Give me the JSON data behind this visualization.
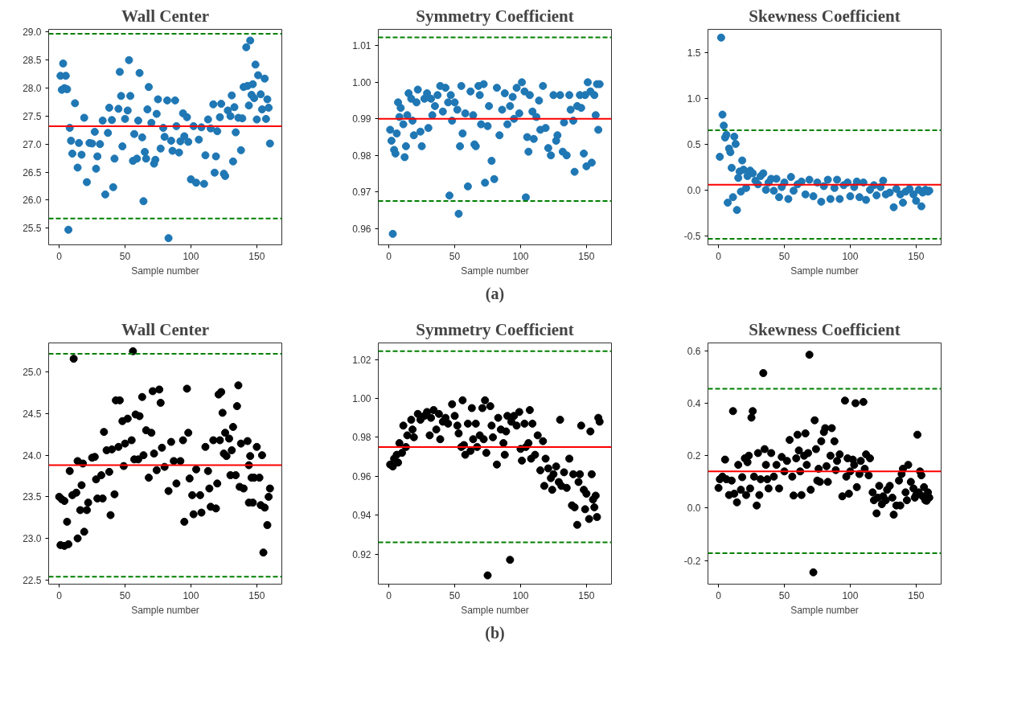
{
  "chart_data": [
    {
      "type": "scatter",
      "title": "Wall Center",
      "xlabel": "Sample number",
      "marker": "circle",
      "grid": false,
      "xlim": [
        -8,
        169
      ],
      "ylim": [
        25.2,
        29.05
      ],
      "xticks": [
        0,
        50,
        100,
        150
      ],
      "yticks": [
        25.5,
        {
          "value": 26,
          "label": "26.0"
        },
        26.5,
        {
          "value": 27,
          "label": "27.0"
        },
        27.5,
        {
          "value": 28,
          "label": "28.0"
        },
        28.5,
        {
          "value": 29,
          "label": "29.0"
        }
      ],
      "x": [
        1,
        2,
        3,
        4,
        5,
        6,
        7,
        8,
        9,
        10,
        12,
        14,
        15,
        17,
        19,
        21,
        23,
        25,
        27,
        28,
        29,
        31,
        33,
        35,
        37,
        38,
        40,
        41,
        42,
        45,
        46,
        47,
        48,
        50,
        52,
        53,
        54,
        56,
        57,
        59,
        60,
        61,
        63,
        64,
        65,
        66,
        67,
        68,
        70,
        72,
        73,
        74,
        75,
        77,
        79,
        80,
        82,
        83,
        85,
        86,
        88,
        89,
        91,
        92,
        94,
        95,
        97,
        98,
        100,
        102,
        104,
        106,
        108,
        110,
        111,
        113,
        115,
        117,
        118,
        119,
        120,
        122,
        123,
        125,
        126,
        128,
        130,
        131,
        132,
        133,
        134,
        136,
        138,
        139,
        140,
        142,
        143,
        144,
        145,
        146,
        147,
        148,
        149,
        150,
        151,
        153,
        154,
        156,
        157,
        158,
        159,
        160
      ],
      "series": [
        {
          "color": "#1f77b4",
          "values": [
            28.22,
            27.97,
            28.44,
            28.0,
            28.22,
            27.98,
            25.47,
            27.29,
            27.06,
            26.83,
            27.73,
            26.58,
            27.02,
            26.81,
            27.47,
            26.32,
            27.02,
            27.01,
            27.22,
            26.56,
            26.78,
            27.0,
            27.42,
            26.1,
            27.2,
            27.65,
            27.43,
            26.23,
            26.74,
            27.63,
            28.29,
            27.86,
            26.96,
            27.45,
            27.6,
            28.5,
            27.86,
            26.7,
            27.18,
            26.74,
            27.42,
            28.27,
            27.12,
            25.98,
            26.86,
            26.74,
            27.62,
            28.02,
            27.38,
            26.65,
            26.72,
            27.54,
            27.8,
            26.92,
            27.29,
            27.13,
            27.78,
            25.32,
            27.06,
            26.88,
            27.78,
            27.32,
            26.85,
            27.05,
            27.55,
            27.14,
            27.48,
            27.04,
            26.37,
            27.32,
            26.31,
            27.08,
            27.3,
            26.29,
            26.8,
            27.44,
            27.28,
            27.71,
            26.49,
            26.78,
            27.23,
            27.48,
            27.72,
            26.47,
            26.43,
            27.6,
            27.5,
            27.87,
            26.69,
            27.66,
            27.21,
            27.47,
            26.89,
            27.46,
            28.02,
            28.73,
            28.04,
            27.69,
            28.85,
            27.88,
            28.07,
            27.82,
            28.42,
            27.44,
            28.23,
            27.89,
            27.62,
            28.17,
            27.45,
            27.8,
            27.65,
            27.01
          ]
        }
      ],
      "ref_lines": [
        {
          "axis": "y",
          "value": 27.32,
          "color": "#ff0000",
          "line_style": "solid"
        },
        {
          "axis": "y",
          "value": 28.97,
          "color": "#008000",
          "line_style": "dashed"
        },
        {
          "axis": "y",
          "value": 25.67,
          "color": "#008000",
          "line_style": "dashed"
        }
      ]
    },
    {
      "type": "scatter",
      "title": "Symmetry Coefficient",
      "xlabel": "Sample number",
      "marker": "circle",
      "grid": false,
      "xlim": [
        -8,
        169
      ],
      "ylim": [
        0.9555,
        1.0145
      ],
      "xticks": [
        0,
        50,
        100,
        150
      ],
      "yticks": [
        0.96,
        0.97,
        0.98,
        0.99,
        {
          "value": 1,
          "label": "1.00"
        },
        1.01
      ],
      "annotations": [
        "(a)"
      ],
      "x": [
        1,
        2,
        3,
        4,
        5,
        6,
        7,
        8,
        9,
        11,
        12,
        13,
        14,
        15,
        17,
        18,
        19,
        21,
        22,
        24,
        25,
        27,
        29,
        30,
        32,
        33,
        35,
        37,
        39,
        41,
        43,
        45,
        46,
        47,
        48,
        50,
        52,
        53,
        54,
        55,
        56,
        58,
        60,
        62,
        64,
        65,
        66,
        68,
        69,
        70,
        72,
        73,
        75,
        76,
        78,
        80,
        82,
        84,
        86,
        88,
        90,
        92,
        94,
        95,
        97,
        99,
        101,
        103,
        104,
        105,
        106,
        107,
        109,
        110,
        112,
        114,
        115,
        117,
        119,
        121,
        123,
        125,
        127,
        128,
        130,
        132,
        133,
        135,
        137,
        138,
        140,
        141,
        143,
        145,
        146,
        148,
        149,
        150,
        151,
        153,
        154,
        156,
        157,
        158,
        159,
        160
      ],
      "series": [
        {
          "color": "#1f77b4",
          "values": [
            0.987,
            0.984,
            0.9585,
            0.9815,
            0.9805,
            0.986,
            0.9945,
            0.9905,
            0.993,
            0.9885,
            0.9795,
            0.9825,
            0.991,
            0.997,
            0.9955,
            0.9895,
            0.9855,
            0.9945,
            0.998,
            0.9865,
            0.9825,
            0.9955,
            0.997,
            0.9875,
            0.9955,
            0.991,
            0.9935,
            0.9965,
            0.999,
            0.992,
            0.9985,
            0.9945,
            0.969,
            0.9965,
            0.9895,
            0.9945,
            0.9925,
            0.964,
            0.9825,
            0.999,
            0.986,
            0.9915,
            0.9715,
            0.9975,
            0.991,
            0.983,
            0.9825,
            0.999,
            0.9965,
            0.9885,
            0.9995,
            0.9725,
            0.988,
            0.9935,
            0.9785,
            0.9735,
            0.9985,
            0.9855,
            0.9925,
            0.997,
            0.9885,
            0.9935,
            0.996,
            0.99,
            0.9985,
            0.9915,
            1.0,
            0.9975,
            0.9685,
            0.985,
            0.981,
            0.9965,
            0.992,
            0.9845,
            0.9905,
            0.995,
            0.987,
            0.999,
            0.9875,
            0.982,
            0.98,
            0.9965,
            0.984,
            0.9855,
            0.9965,
            0.981,
            0.989,
            0.98,
            0.9965,
            0.9925,
            0.9895,
            0.9755,
            0.9935,
            0.9965,
            0.993,
            0.9805,
            0.9965,
            0.977,
            1.0,
            0.9975,
            0.978,
            0.9965,
            0.991,
            0.9995,
            0.987,
            0.9995
          ]
        }
      ],
      "ref_lines": [
        {
          "axis": "y",
          "value": 0.99,
          "color": "#ff0000",
          "line_style": "solid"
        },
        {
          "axis": "y",
          "value": 1.0123,
          "color": "#008000",
          "line_style": "dashed"
        },
        {
          "axis": "y",
          "value": 0.9675,
          "color": "#008000",
          "line_style": "dashed"
        }
      ]
    },
    {
      "type": "scatter",
      "title": "Skewness Coefficient",
      "xlabel": "Sample number",
      "marker": "circle",
      "grid": false,
      "xlim": [
        -8,
        169
      ],
      "ylim": [
        -0.6,
        1.75
      ],
      "xticks": [
        0,
        50,
        100,
        150
      ],
      "yticks": [
        -0.5,
        {
          "value": 0,
          "label": "0.0"
        },
        0.5,
        {
          "value": 1,
          "label": "1.0"
        },
        1.5
      ],
      "x": [
        1,
        2,
        3,
        4,
        5,
        6,
        7,
        8,
        9,
        10,
        11,
        12,
        13,
        14,
        15,
        16,
        17,
        18,
        19,
        21,
        22,
        24,
        26,
        28,
        30,
        32,
        34,
        36,
        38,
        40,
        42,
        44,
        46,
        48,
        50,
        53,
        55,
        57,
        60,
        63,
        66,
        69,
        72,
        75,
        78,
        80,
        83,
        85,
        88,
        90,
        92,
        95,
        98,
        100,
        103,
        105,
        107,
        110,
        112,
        115,
        118,
        120,
        123,
        125,
        127,
        130,
        133,
        135,
        138,
        140,
        142,
        145,
        148,
        150,
        152,
        154,
        155,
        157,
        159,
        160
      ],
      "series": [
        {
          "color": "#1f77b4",
          "values": [
            0.36,
            1.66,
            0.82,
            0.7,
            0.57,
            0.6,
            -0.14,
            0.45,
            0.41,
            0.24,
            -0.08,
            0.58,
            0.5,
            -0.22,
            0.13,
            0.2,
            -0.02,
            0.32,
            0.22,
            0.02,
            0.15,
            0.21,
            0.18,
            0.1,
            0.06,
            0.15,
            0.18,
            0.0,
            0.08,
            0.12,
            -0.01,
            0.12,
            -0.08,
            0.03,
            0.08,
            -0.1,
            0.14,
            -0.01,
            0.06,
            0.09,
            -0.05,
            0.11,
            -0.07,
            0.08,
            -0.13,
            0.04,
            0.11,
            -0.1,
            0.02,
            0.11,
            -0.1,
            0.05,
            0.08,
            -0.07,
            0.03,
            0.09,
            -0.08,
            0.08,
            -0.11,
            0.0,
            0.05,
            -0.06,
            0.03,
            0.1,
            -0.05,
            -0.03,
            -0.19,
            0.01,
            -0.05,
            -0.14,
            -0.02,
            0.01,
            -0.05,
            -0.12,
            0.0,
            -0.18,
            -0.03,
            0.0,
            -0.02,
            -0.01
          ]
        }
      ],
      "ref_lines": [
        {
          "axis": "y",
          "value": 0.055,
          "color": "#ff0000",
          "line_style": "solid"
        },
        {
          "axis": "y",
          "value": 0.65,
          "color": "#008000",
          "line_style": "dashed"
        },
        {
          "axis": "y",
          "value": -0.535,
          "color": "#008000",
          "line_style": "dashed"
        }
      ]
    },
    {
      "type": "scatter",
      "title": "Wall Center",
      "xlabel": "Sample number",
      "marker": "circle",
      "grid": false,
      "xlim": [
        -8,
        169
      ],
      "ylim": [
        22.45,
        25.35
      ],
      "xticks": [
        0,
        50,
        100,
        150
      ],
      "yticks": [
        22.5,
        {
          "value": 23,
          "label": "23.0"
        },
        23.5,
        {
          "value": 24,
          "label": "24.0"
        },
        24.5,
        {
          "value": 25,
          "label": "25.0"
        }
      ],
      "x": [
        0,
        1,
        2,
        4,
        4,
        6,
        7,
        8,
        10,
        11,
        13,
        14,
        14,
        16,
        17,
        18,
        19,
        21,
        22,
        25,
        27,
        28,
        29,
        32,
        33,
        34,
        36,
        38,
        39,
        40,
        42,
        43,
        45,
        46,
        48,
        49,
        50,
        52,
        55,
        56,
        57,
        58,
        60,
        61,
        63,
        64,
        66,
        68,
        70,
        71,
        72,
        74,
        76,
        77,
        78,
        80,
        83,
        85,
        87,
        89,
        92,
        94,
        95,
        97,
        98,
        99,
        101,
        102,
        104,
        107,
        108,
        111,
        113,
        114,
        115,
        117,
        119,
        120,
        121,
        122,
        123,
        124,
        125,
        126,
        127,
        129,
        130,
        131,
        132,
        134,
        135,
        136,
        137,
        138,
        140,
        143,
        144,
        145,
        146,
        144,
        147,
        148,
        150,
        152,
        153,
        154,
        155,
        156,
        158,
        159,
        160
      ],
      "series": [
        {
          "color": "#000000",
          "values": [
            23.5,
            22.92,
            23.47,
            23.45,
            22.91,
            23.2,
            22.93,
            23.81,
            23.52,
            25.16,
            23.55,
            23.0,
            23.93,
            23.34,
            23.64,
            23.9,
            23.08,
            23.34,
            23.43,
            23.97,
            23.98,
            23.71,
            23.48,
            23.76,
            23.48,
            24.28,
            24.06,
            23.8,
            23.28,
            24.07,
            23.53,
            24.66,
            24.1,
            24.66,
            24.41,
            23.87,
            24.14,
            24.44,
            24.18,
            25.25,
            23.95,
            24.49,
            23.95,
            24.47,
            24.7,
            24.0,
            24.3,
            23.73,
            24.27,
            24.77,
            24.02,
            23.82,
            24.79,
            24.63,
            24.09,
            23.86,
            23.57,
            24.16,
            23.93,
            23.66,
            23.93,
            24.18,
            23.2,
            24.8,
            24.27,
            23.72,
            23.52,
            23.29,
            23.83,
            23.52,
            23.31,
            24.1,
            23.81,
            23.6,
            23.38,
            24.18,
            23.36,
            23.66,
            24.73,
            24.18,
            24.76,
            24.51,
            24.02,
            24.27,
            23.99,
            24.2,
            23.76,
            24.06,
            24.34,
            23.76,
            24.59,
            24.84,
            23.62,
            24.14,
            23.6,
            24.17,
            23.88,
            23.99,
            23.73,
            23.43,
            23.43,
            23.73,
            24.1,
            23.73,
            23.4,
            24.0,
            22.83,
            23.37,
            23.16,
            23.5,
            23.6
          ]
        }
      ],
      "ref_lines": [
        {
          "axis": "y",
          "value": 23.88,
          "color": "#ff0000",
          "line_style": "solid"
        },
        {
          "axis": "y",
          "value": 25.22,
          "color": "#008000",
          "line_style": "dashed"
        },
        {
          "axis": "y",
          "value": 22.54,
          "color": "#008000",
          "line_style": "dashed"
        }
      ]
    },
    {
      "type": "scatter",
      "title": "Symmetry Coefficient",
      "xlabel": "Sample number",
      "marker": "circle",
      "grid": false,
      "xlim": [
        -8,
        169
      ],
      "ylim": [
        0.9045,
        1.0285
      ],
      "xticks": [
        0,
        50,
        100,
        150
      ],
      "yticks": [
        0.92,
        0.94,
        0.96,
        0.98,
        {
          "value": 1,
          "label": "1.00"
        },
        1.02
      ],
      "annotations": [
        "(b)"
      ],
      "x": [
        1,
        3,
        4,
        6,
        7,
        8,
        10,
        11,
        13,
        14,
        17,
        18,
        19,
        22,
        24,
        27,
        29,
        31,
        32,
        34,
        36,
        38,
        39,
        41,
        43,
        45,
        48,
        50,
        52,
        53,
        55,
        56,
        57,
        58,
        60,
        62,
        63,
        64,
        66,
        67,
        69,
        71,
        72,
        73,
        74,
        75,
        77,
        78,
        79,
        82,
        83,
        85,
        87,
        88,
        89,
        90,
        92,
        93,
        95,
        97,
        99,
        100,
        101,
        103,
        104,
        106,
        107,
        108,
        109,
        111,
        113,
        115,
        117,
        118,
        119,
        121,
        123,
        124,
        125,
        127,
        129,
        130,
        131,
        133,
        135,
        137,
        139,
        140,
        141,
        143,
        144,
        145,
        146,
        148,
        149,
        150,
        152,
        153,
        154,
        155,
        156,
        157,
        158,
        159,
        160
      ],
      "series": [
        {
          "color": "#000000",
          "values": [
            0.966,
            0.965,
            0.969,
            0.971,
            0.967,
            0.977,
            0.972,
            0.986,
            0.975,
            0.981,
            0.989,
            0.984,
            0.98,
            0.992,
            0.989,
            0.991,
            0.993,
            0.981,
            0.99,
            0.994,
            0.984,
            0.992,
            0.979,
            0.988,
            0.99,
            0.987,
            0.997,
            0.991,
            0.986,
            0.982,
            0.975,
            0.999,
            0.976,
            0.971,
            0.987,
            0.973,
            0.995,
            0.979,
            0.987,
            0.975,
            0.981,
            0.995,
            0.979,
            0.999,
            0.972,
            0.909,
            0.996,
            0.986,
            0.98,
            0.966,
            0.99,
            0.984,
            0.977,
            0.971,
            0.983,
            0.991,
            0.917,
            0.988,
            0.991,
            0.986,
            0.993,
            0.974,
            0.968,
            0.987,
            0.975,
            0.977,
            0.994,
            0.969,
            0.987,
            0.971,
            0.981,
            0.963,
            0.978,
            0.955,
            0.969,
            0.964,
            0.959,
            0.953,
            0.961,
            0.965,
            0.957,
            0.989,
            0.955,
            0.962,
            0.954,
            0.969,
            0.945,
            0.961,
            0.944,
            0.935,
            0.957,
            0.961,
            0.986,
            0.953,
            0.943,
            0.951,
            0.938,
            0.983,
            0.961,
            0.948,
            0.944,
            0.95,
            0.939,
            0.99,
            0.988
          ]
        }
      ],
      "ref_lines": [
        {
          "axis": "y",
          "value": 0.975,
          "color": "#ff0000",
          "line_style": "solid"
        },
        {
          "axis": "y",
          "value": 1.0243,
          "color": "#008000",
          "line_style": "dashed"
        },
        {
          "axis": "y",
          "value": 0.926,
          "color": "#008000",
          "line_style": "dashed"
        }
      ]
    },
    {
      "type": "scatter",
      "title": "Skewness Coefficient",
      "xlabel": "Sample number",
      "marker": "circle",
      "grid": false,
      "xlim": [
        -8,
        169
      ],
      "ylim": [
        -0.29,
        0.63
      ],
      "xticks": [
        0,
        50,
        100,
        150
      ],
      "yticks": [
        -0.2,
        {
          "value": 0,
          "label": "0.0"
        },
        0.2,
        0.4,
        0.6
      ],
      "x": [
        0,
        1,
        3,
        5,
        6,
        8,
        10,
        11,
        12,
        14,
        15,
        17,
        18,
        20,
        21,
        22,
        23,
        24,
        25,
        26,
        27,
        29,
        30,
        31,
        32,
        34,
        35,
        36,
        37,
        38,
        40,
        42,
        44,
        46,
        48,
        50,
        52,
        54,
        56,
        57,
        59,
        60,
        61,
        62,
        63,
        65,
        66,
        67,
        68,
        69,
        70,
        72,
        73,
        74,
        75,
        76,
        77,
        78,
        80,
        81,
        82,
        83,
        85,
        86,
        88,
        89,
        90,
        92,
        94,
        96,
        97,
        98,
        99,
        100,
        102,
        103,
        104,
        105,
        107,
        108,
        110,
        111,
        112,
        114,
        115,
        117,
        118,
        120,
        121,
        122,
        124,
        125,
        127,
        128,
        130,
        132,
        133,
        135,
        137,
        138,
        139,
        140,
        142,
        143,
        144,
        146,
        148,
        149,
        150,
        151,
        152,
        153,
        154,
        155,
        156,
        157,
        158,
        159,
        160
      ],
      "series": [
        {
          "color": "#000000",
          "values": [
            0.077,
            0.11,
            0.12,
            0.185,
            0.11,
            0.05,
            0.105,
            0.37,
            0.055,
            0.022,
            0.165,
            0.07,
            0.118,
            0.19,
            0.05,
            0.175,
            0.2,
            0.075,
            0.345,
            0.37,
            0.12,
            0.01,
            0.21,
            0.05,
            0.11,
            0.515,
            0.225,
            0.165,
            0.11,
            0.075,
            0.21,
            0.12,
            0.165,
            0.075,
            0.195,
            0.14,
            0.18,
            0.26,
            0.12,
            0.048,
            0.19,
            0.28,
            0.22,
            0.14,
            0.05,
            0.2,
            0.285,
            0.165,
            0.21,
            0.585,
            0.07,
            -0.245,
            0.335,
            0.225,
            0.105,
            0.15,
            0.1,
            0.255,
            0.29,
            0.305,
            0.16,
            0.1,
            0.2,
            0.305,
            0.255,
            0.145,
            0.18,
            0.205,
            0.045,
            0.41,
            0.12,
            0.19,
            0.055,
            0.14,
            0.185,
            0.165,
            0.4,
            0.08,
            0.13,
            0.18,
            0.405,
            0.15,
            0.205,
            0.125,
            0.19,
            0.06,
            0.03,
            -0.02,
            0.04,
            0.085,
            0.015,
            0.045,
            0.03,
            0.07,
            0.085,
            0.04,
            -0.025,
            0.01,
            0.105,
            0.01,
            0.13,
            0.15,
            0.06,
            0.03,
            0.165,
            0.1,
            0.075,
            0.04,
            0.05,
            0.28,
            0.06,
            0.14,
            0.125,
            0.045,
            0.08,
            0.03,
            0.028,
            0.06,
            0.04
          ]
        }
      ],
      "ref_lines": [
        {
          "axis": "y",
          "value": 0.14,
          "color": "#ff0000",
          "line_style": "solid"
        },
        {
          "axis": "y",
          "value": 0.455,
          "color": "#008000",
          "line_style": "dashed"
        },
        {
          "axis": "y",
          "value": -0.172,
          "color": "#008000",
          "line_style": "dashed"
        }
      ]
    }
  ]
}
